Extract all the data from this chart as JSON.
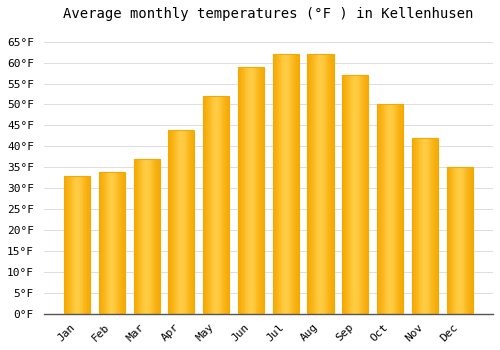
{
  "title": "Average monthly temperatures (°F ) in Kellenhusen",
  "months": [
    "Jan",
    "Feb",
    "Mar",
    "Apr",
    "May",
    "Jun",
    "Jul",
    "Aug",
    "Sep",
    "Oct",
    "Nov",
    "Dec"
  ],
  "values": [
    33,
    34,
    37,
    44,
    52,
    59,
    62,
    62,
    57,
    50,
    42,
    35
  ],
  "bar_color_center": "#FFCC44",
  "bar_color_edge": "#F5A800",
  "background_color": "#FFFFFF",
  "grid_color": "#DDDDDD",
  "ylim": [
    0,
    68
  ],
  "yticks": [
    0,
    5,
    10,
    15,
    20,
    25,
    30,
    35,
    40,
    45,
    50,
    55,
    60,
    65
  ],
  "ylabel_suffix": "°F",
  "title_fontsize": 10,
  "tick_fontsize": 8,
  "bar_width": 0.75
}
